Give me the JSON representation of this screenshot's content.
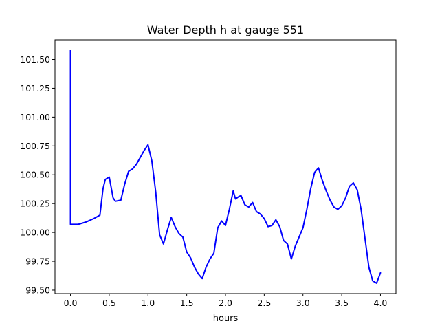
{
  "chart_data": {
    "type": "line",
    "title": "Water Depth h at gauge 551",
    "xlabel": "hours",
    "ylabel": "",
    "xlim": [
      -0.2,
      4.2
    ],
    "ylim": [
      99.47,
      101.67
    ],
    "grid": false,
    "xticks": [
      0.0,
      0.5,
      1.0,
      1.5,
      2.0,
      2.5,
      3.0,
      3.5,
      4.0
    ],
    "xtick_labels": [
      "0.0",
      "0.5",
      "1.0",
      "1.5",
      "2.0",
      "2.5",
      "3.0",
      "3.5",
      "4.0"
    ],
    "yticks": [
      99.5,
      99.75,
      100.0,
      100.25,
      100.5,
      100.75,
      101.0,
      101.25,
      101.5
    ],
    "ytick_labels": [
      "99.50",
      "99.75",
      "100.00",
      "100.25",
      "100.50",
      "100.75",
      "101.00",
      "101.25",
      "101.50"
    ],
    "series": [
      {
        "color": "#0000ff",
        "x": [
          0.0,
          0.0,
          0.01,
          0.1,
          0.2,
          0.3,
          0.38,
          0.42,
          0.45,
          0.5,
          0.55,
          0.58,
          0.65,
          0.7,
          0.75,
          0.8,
          0.85,
          0.9,
          0.95,
          1.0,
          1.05,
          1.1,
          1.15,
          1.2,
          1.25,
          1.3,
          1.35,
          1.4,
          1.45,
          1.5,
          1.55,
          1.6,
          1.65,
          1.7,
          1.75,
          1.8,
          1.85,
          1.9,
          1.95,
          2.0,
          2.05,
          2.1,
          2.13,
          2.17,
          2.2,
          2.25,
          2.3,
          2.35,
          2.4,
          2.45,
          2.5,
          2.55,
          2.6,
          2.65,
          2.7,
          2.75,
          2.8,
          2.85,
          2.9,
          2.95,
          3.0,
          3.05,
          3.1,
          3.15,
          3.2,
          3.25,
          3.3,
          3.35,
          3.4,
          3.45,
          3.5,
          3.55,
          3.6,
          3.65,
          3.7,
          3.75,
          3.8,
          3.85,
          3.9,
          3.95,
          4.0
        ],
        "y": [
          101.58,
          100.07,
          100.07,
          100.07,
          100.09,
          100.12,
          100.15,
          100.38,
          100.46,
          100.48,
          100.3,
          100.27,
          100.28,
          100.42,
          100.53,
          100.55,
          100.59,
          100.65,
          100.71,
          100.76,
          100.62,
          100.35,
          99.98,
          99.9,
          100.02,
          100.13,
          100.05,
          99.99,
          99.96,
          99.83,
          99.78,
          99.7,
          99.64,
          99.6,
          99.7,
          99.77,
          99.82,
          100.04,
          100.1,
          100.06,
          100.2,
          100.36,
          100.29,
          100.31,
          100.32,
          100.24,
          100.22,
          100.26,
          100.18,
          100.16,
          100.12,
          100.05,
          100.06,
          100.11,
          100.05,
          99.93,
          99.9,
          99.77,
          99.88,
          99.96,
          100.04,
          100.2,
          100.38,
          100.52,
          100.56,
          100.45,
          100.36,
          100.28,
          100.22,
          100.2,
          100.23,
          100.3,
          100.4,
          100.43,
          100.37,
          100.2,
          99.95,
          99.7,
          99.58,
          99.56,
          99.65
        ]
      }
    ]
  }
}
